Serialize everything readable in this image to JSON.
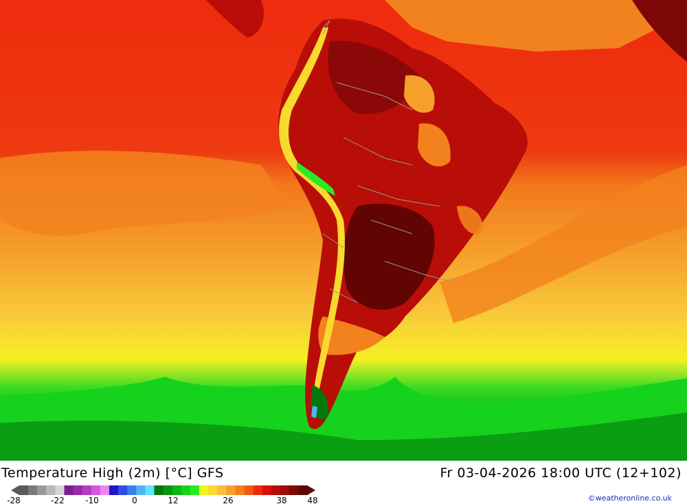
{
  "map": {
    "region": "South America",
    "field": "2 m daily maximum temperature"
  },
  "header": {
    "title": "Temperature High (2m) [°C] GFS",
    "valid_time": "Fr 03-04-2026 18:00 UTC (12+102)"
  },
  "legend": {
    "units": "°C",
    "tick_labels": [
      "-28",
      "-22",
      "-10",
      "0",
      "12",
      "26",
      "38",
      "48"
    ],
    "colors": [
      "#5a5a5a",
      "#7a7a7a",
      "#9a9a9a",
      "#b9b9b9",
      "#d6d6d6",
      "#7b1f8e",
      "#9a2aa8",
      "#b63cc2",
      "#d259dd",
      "#ee86f0",
      "#1f16c9",
      "#2a4fe6",
      "#3a80f0",
      "#4fb3f7",
      "#62e3fc",
      "#04780b",
      "#08960f",
      "#0db515",
      "#16d21d",
      "#27ec25",
      "#f3f21f",
      "#f8d92e",
      "#f7bf3c",
      "#f5a02b",
      "#f2821e",
      "#ee5c14",
      "#ec2b0e",
      "#d51208",
      "#b90d07",
      "#9d0c08",
      "#7e0808",
      "#600404"
    ]
  },
  "credit": "©weatheronline.co.uk"
}
